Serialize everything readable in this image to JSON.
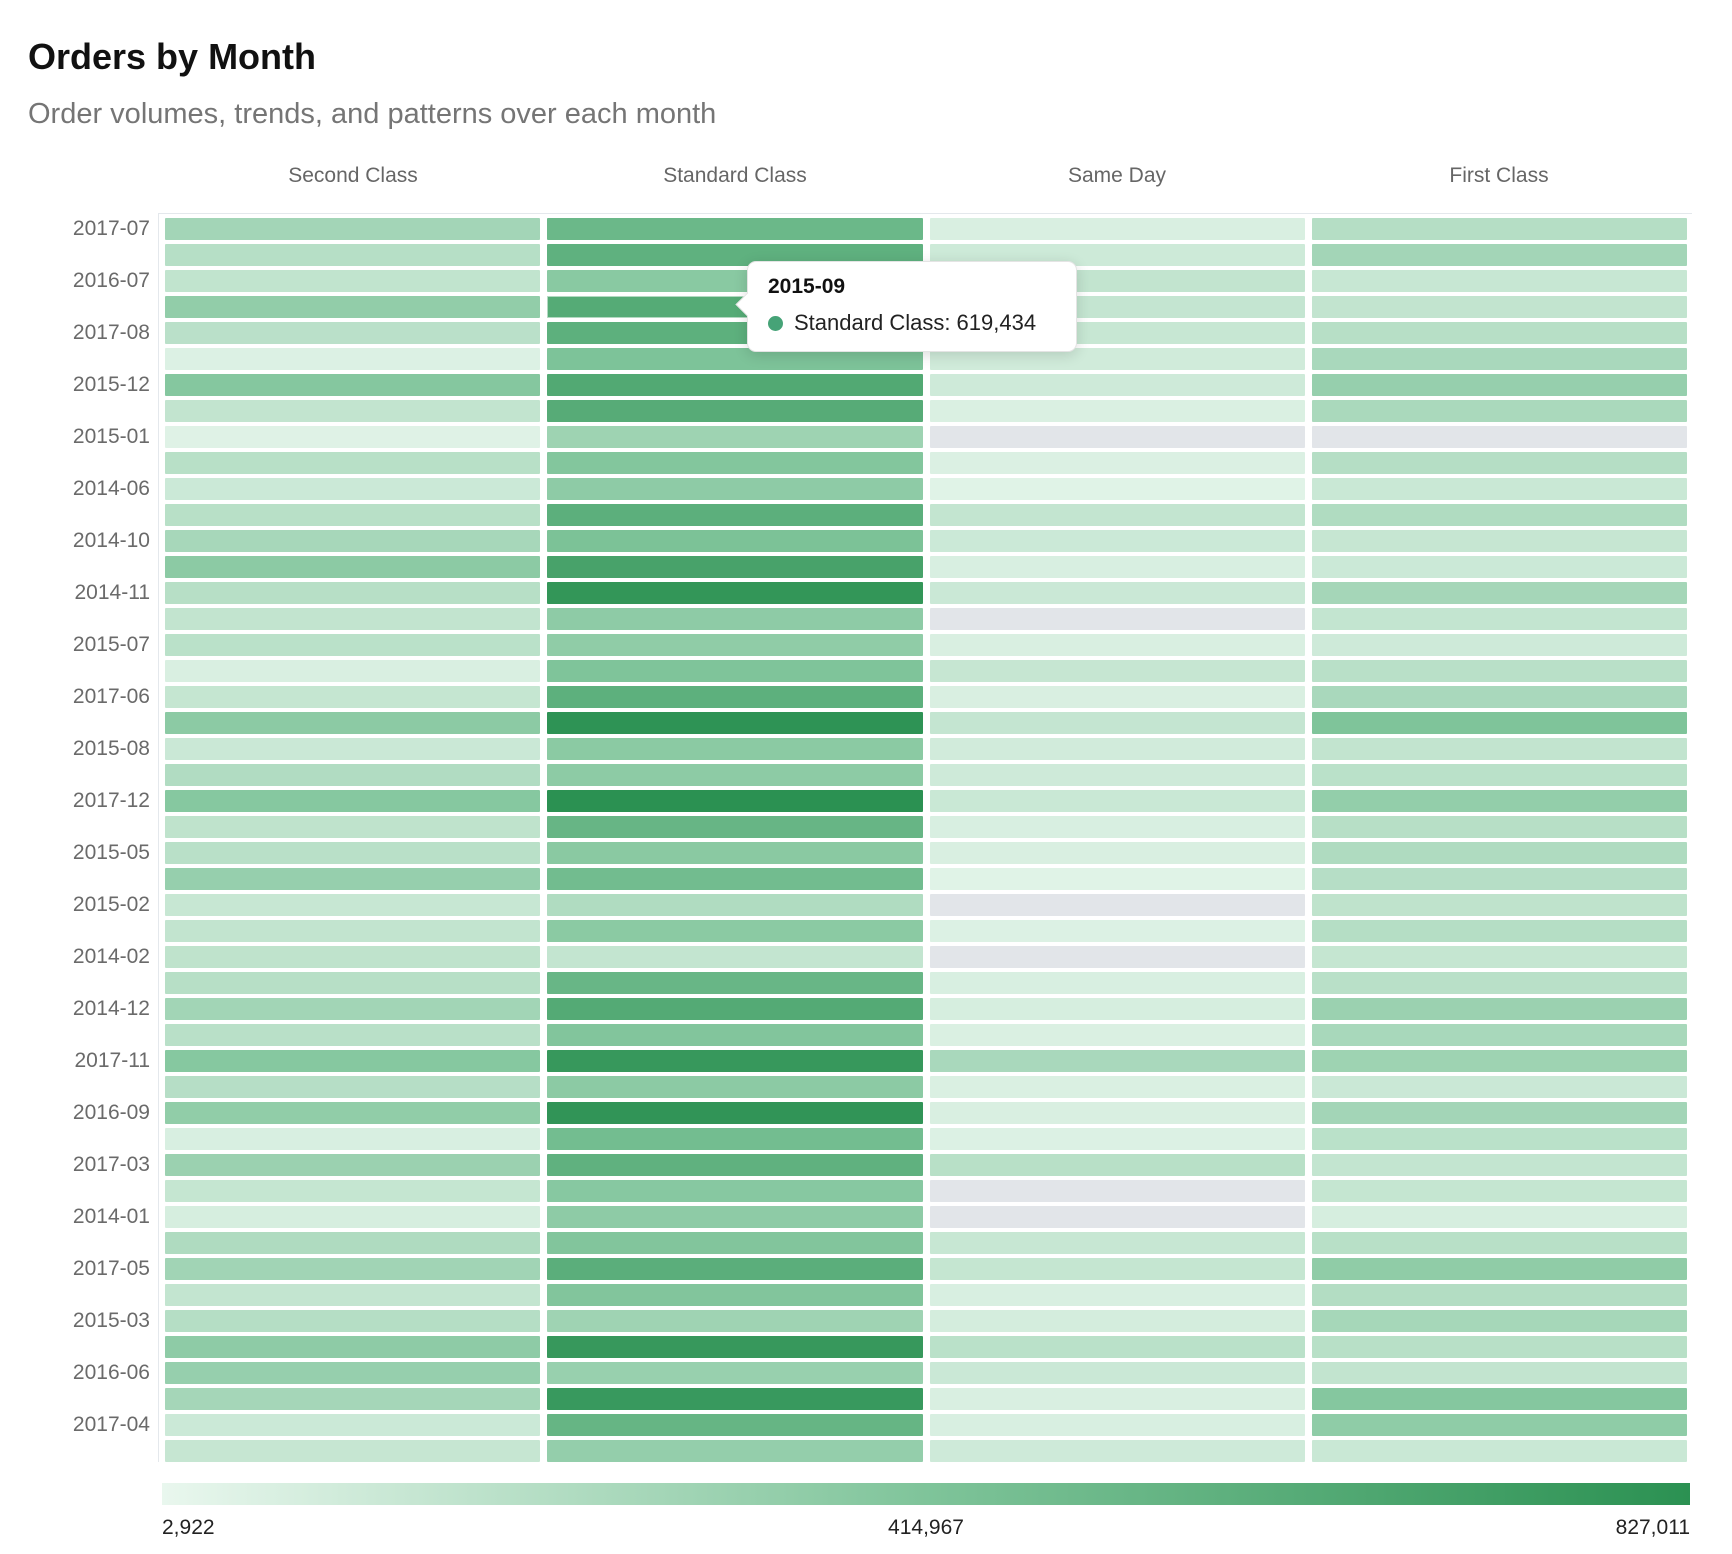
{
  "header": {
    "title": "Orders by Month",
    "subtitle": "Order volumes, trends, and patterns over each month"
  },
  "tooltip": {
    "title": "2015-09",
    "series": "Standard Class:",
    "value": "619,434",
    "dot_color": "#46a377",
    "row_index": 3,
    "col_index": 1
  },
  "legend": {
    "min": "2,922",
    "mid": "414,967",
    "max": "827,011"
  },
  "chart_data": {
    "type": "heatmap",
    "title": "Orders by Month",
    "subtitle": "Order volumes, trends, and patterns over each month",
    "legend_position": "bottom",
    "row_label_every_other": true,
    "scale": {
      "min": 2922,
      "mid": 414967,
      "max": 827011,
      "colors": [
        "#e9f7ee",
        "#7fc49a",
        "#2b9152"
      ],
      "missing_color": "#e2e5e9"
    },
    "columns": [
      "Second Class",
      "Standard Class",
      "Same Day",
      "First Class"
    ],
    "rows": [
      {
        "label": "2017-07",
        "values": [
          275000,
          515000,
          65000,
          205000
        ]
      },
      {
        "label": "",
        "values": [
          200000,
          570000,
          110000,
          275000
        ]
      },
      {
        "label": "2016-07",
        "values": [
          160000,
          375000,
          155000,
          135000
        ]
      },
      {
        "label": "",
        "values": [
          340000,
          619434,
          147000,
          155000
        ]
      },
      {
        "label": "2017-08",
        "values": [
          185000,
          580000,
          135000,
          197000
        ]
      },
      {
        "label": "",
        "values": [
          53000,
          423000,
          102000,
          250000
        ]
      },
      {
        "label": "2015-12",
        "values": [
          390000,
          637000,
          106000,
          324000
        ]
      },
      {
        "label": "",
        "values": [
          155000,
          613000,
          61000,
          246000
        ]
      },
      {
        "label": "2015-01",
        "values": [
          40000,
          295000,
          null,
          null
        ]
      },
      {
        "label": "",
        "values": [
          192000,
          398000,
          57000,
          205000
        ]
      },
      {
        "label": "2014-06",
        "values": [
          118000,
          357000,
          36000,
          127000
        ]
      },
      {
        "label": "",
        "values": [
          192000,
          588000,
          151000,
          225000
        ]
      },
      {
        "label": "2014-10",
        "values": [
          258000,
          431000,
          118000,
          139000
        ]
      },
      {
        "label": "",
        "values": [
          366000,
          687000,
          69000,
          118000
        ]
      },
      {
        "label": "2014-11",
        "values": [
          197000,
          790000,
          122000,
          267000
        ]
      },
      {
        "label": "",
        "values": [
          155000,
          357000,
          null,
          151000
        ]
      },
      {
        "label": "2015-07",
        "values": [
          184000,
          349000,
          65000,
          106000
        ]
      },
      {
        "label": "",
        "values": [
          65000,
          415000,
          139000,
          188000
        ]
      },
      {
        "label": "2017-06",
        "values": [
          143000,
          580000,
          65000,
          250000
        ]
      },
      {
        "label": "",
        "values": [
          366000,
          810000,
          147000,
          415000
        ]
      },
      {
        "label": "2015-08",
        "values": [
          122000,
          370000,
          98000,
          155000
        ]
      },
      {
        "label": "",
        "values": [
          221000,
          361000,
          106000,
          184000
        ]
      },
      {
        "label": "2017-12",
        "values": [
          386000,
          827011,
          127000,
          337000
        ]
      },
      {
        "label": "",
        "values": [
          168000,
          534000,
          69000,
          197000
        ]
      },
      {
        "label": "2015-05",
        "values": [
          188000,
          374000,
          65000,
          229000
        ]
      },
      {
        "label": "",
        "values": [
          324000,
          477000,
          36000,
          201000
        ]
      },
      {
        "label": "2015-02",
        "values": [
          135000,
          225000,
          null,
          168000
        ]
      },
      {
        "label": "",
        "values": [
          155000,
          370000,
          53000,
          205000
        ]
      },
      {
        "label": "2014-02",
        "values": [
          168000,
          151000,
          null,
          143000
        ]
      },
      {
        "label": "",
        "values": [
          197000,
          530000,
          69000,
          188000
        ]
      },
      {
        "label": "2014-12",
        "values": [
          279000,
          625000,
          77000,
          308000
        ]
      },
      {
        "label": "",
        "values": [
          188000,
          403000,
          61000,
          254000
        ]
      },
      {
        "label": "2017-11",
        "values": [
          386000,
          769000,
          250000,
          295000
        ]
      },
      {
        "label": "",
        "values": [
          201000,
          366000,
          61000,
          122000
        ]
      },
      {
        "label": "2016-09",
        "values": [
          345000,
          800000,
          65000,
          275000
        ]
      },
      {
        "label": "",
        "values": [
          69000,
          473000,
          53000,
          184000
        ]
      },
      {
        "label": "2017-03",
        "values": [
          308000,
          567000,
          192000,
          151000
        ]
      },
      {
        "label": "",
        "values": [
          143000,
          382000,
          null,
          143000
        ]
      },
      {
        "label": "2014-01",
        "values": [
          77000,
          357000,
          null,
          77000
        ]
      },
      {
        "label": "",
        "values": [
          229000,
          403000,
          135000,
          192000
        ]
      },
      {
        "label": "2017-05",
        "values": [
          283000,
          592000,
          143000,
          349000
        ]
      },
      {
        "label": "",
        "values": [
          151000,
          403000,
          69000,
          213000
        ]
      },
      {
        "label": "2015-03",
        "values": [
          205000,
          291000,
          85000,
          262000
        ]
      },
      {
        "label": "",
        "values": [
          357000,
          769000,
          184000,
          192000
        ]
      },
      {
        "label": "2016-06",
        "values": [
          324000,
          316000,
          122000,
          155000
        ]
      },
      {
        "label": "",
        "values": [
          267000,
          761000,
          65000,
          390000
        ]
      },
      {
        "label": "2017-04",
        "values": [
          118000,
          539000,
          69000,
          353000
        ]
      },
      {
        "label": "",
        "values": [
          139000,
          333000,
          106000,
          127000
        ]
      }
    ]
  }
}
